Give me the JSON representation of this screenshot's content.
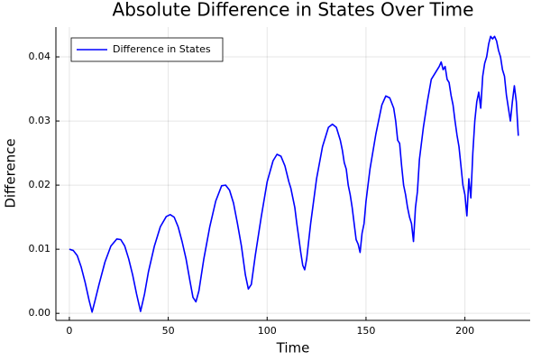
{
  "chart_data": {
    "type": "line",
    "title": "Absolute Difference in States Over Time",
    "x_label": "Time",
    "y_label": "Difference",
    "x": [
      0,
      2,
      4,
      6,
      8,
      10,
      11.5,
      13,
      15,
      18,
      21,
      24,
      26,
      28,
      30,
      32,
      34,
      36,
      38,
      40,
      43,
      46,
      49,
      51,
      53,
      55,
      57,
      59,
      61,
      62.5,
      64,
      65.5,
      68,
      71,
      74,
      77,
      79,
      81,
      83,
      85,
      87,
      89,
      90.5,
      92,
      94,
      97,
      100,
      103,
      105,
      107,
      109,
      111,
      112,
      114,
      115,
      116,
      117,
      118,
      119,
      120,
      122,
      125,
      128,
      131,
      133,
      135,
      137,
      138,
      139,
      140,
      141,
      142,
      143,
      144,
      145,
      146,
      147,
      148,
      149,
      150,
      152,
      155,
      158,
      160,
      162,
      164,
      165,
      166,
      167,
      168,
      169,
      170,
      171,
      172,
      173,
      174,
      175,
      176,
      177,
      179,
      181,
      183,
      185,
      187,
      188,
      189,
      190,
      191,
      192,
      193,
      194,
      195,
      196,
      197,
      198,
      199,
      200,
      201,
      202,
      203,
      204,
      205,
      206,
      207,
      208,
      209,
      210,
      211,
      212,
      213,
      214,
      215,
      216,
      217,
      218,
      219,
      220,
      221,
      222,
      223,
      224,
      225,
      226,
      227
    ],
    "series": [
      {
        "name": "Difference in States",
        "color": "#0000ff",
        "values": [
          0.01,
          0.0098,
          0.009,
          0.0072,
          0.0048,
          0.002,
          0.0002,
          0.002,
          0.0045,
          0.008,
          0.0105,
          0.0116,
          0.0115,
          0.0105,
          0.0085,
          0.006,
          0.003,
          0.0003,
          0.003,
          0.0065,
          0.0105,
          0.0135,
          0.0151,
          0.0154,
          0.015,
          0.0135,
          0.0112,
          0.0085,
          0.005,
          0.0025,
          0.0018,
          0.0035,
          0.0085,
          0.0135,
          0.0175,
          0.0199,
          0.02,
          0.0192,
          0.0172,
          0.014,
          0.0105,
          0.006,
          0.0038,
          0.0045,
          0.009,
          0.015,
          0.0205,
          0.0238,
          0.0248,
          0.0245,
          0.023,
          0.0205,
          0.0195,
          0.0165,
          0.014,
          0.0118,
          0.0095,
          0.0075,
          0.0068,
          0.0085,
          0.014,
          0.021,
          0.026,
          0.029,
          0.0295,
          0.029,
          0.027,
          0.0255,
          0.0235,
          0.0225,
          0.02,
          0.0185,
          0.0165,
          0.014,
          0.0115,
          0.0108,
          0.0095,
          0.0125,
          0.014,
          0.0175,
          0.0225,
          0.028,
          0.0325,
          0.0339,
          0.0336,
          0.032,
          0.03,
          0.027,
          0.0265,
          0.023,
          0.02,
          0.0185,
          0.0165,
          0.015,
          0.014,
          0.0112,
          0.0165,
          0.019,
          0.024,
          0.029,
          0.033,
          0.0365,
          0.0375,
          0.0385,
          0.0392,
          0.038,
          0.0385,
          0.0365,
          0.036,
          0.034,
          0.0325,
          0.03,
          0.0278,
          0.026,
          0.023,
          0.02,
          0.0185,
          0.0152,
          0.021,
          0.018,
          0.025,
          0.03,
          0.033,
          0.0345,
          0.032,
          0.037,
          0.039,
          0.04,
          0.042,
          0.0432,
          0.0428,
          0.0432,
          0.0425,
          0.041,
          0.04,
          0.038,
          0.037,
          0.034,
          0.032,
          0.03,
          0.033,
          0.0355,
          0.033,
          0.0277
        ]
      }
    ],
    "xlim": [
      -6.8,
      233
    ],
    "ylim": [
      -0.0011,
      0.04465
    ],
    "xticks": [
      0,
      50,
      100,
      150,
      200
    ],
    "yticks": [
      {
        "value": 0,
        "label": "0.00"
      },
      0.01,
      0.02,
      0.03,
      0.04
    ],
    "grid": true,
    "legend": "top-left"
  }
}
